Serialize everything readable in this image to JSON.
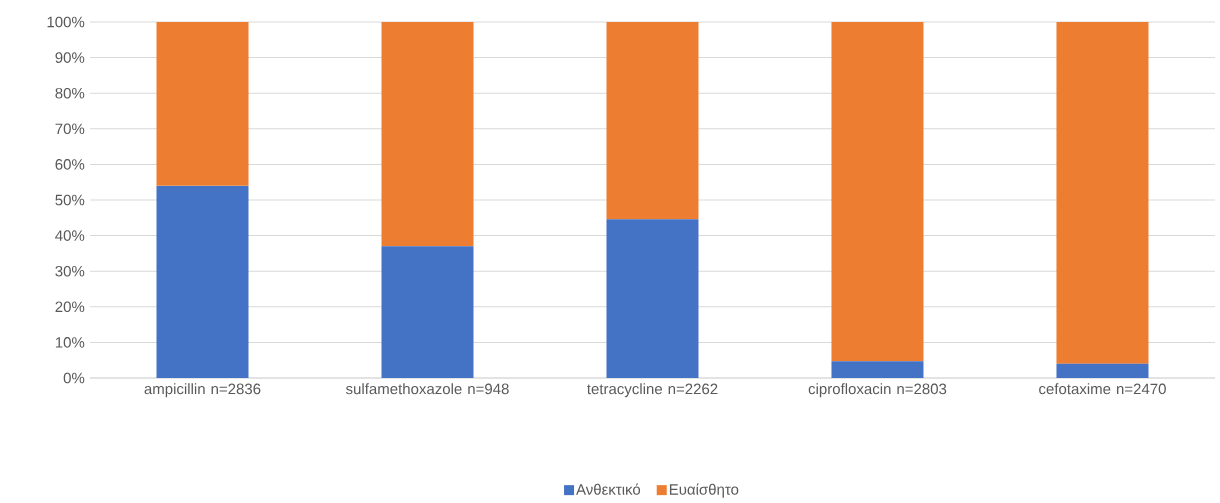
{
  "chart_data": {
    "type": "bar",
    "stacked": true,
    "categories": [
      "ampicillin n=2836",
      "sulfamethoxazole n=948",
      "tetracycline n=2262",
      "ciprofloxacin n=2803",
      "cefotaxime n=2470"
    ],
    "series": [
      {
        "name": "Ανθεκτικό",
        "color": "#4472c4",
        "values": [
          54,
          37,
          44.6,
          4.7,
          4
        ]
      },
      {
        "name": "Ευαίσθητο",
        "color": "#ed7d31",
        "values": [
          46,
          63,
          55.4,
          95.3,
          96
        ]
      }
    ],
    "ylim": [
      0,
      100
    ],
    "yticks": [
      {
        "value": 0,
        "label": "0%"
      },
      {
        "value": 10,
        "label": "10%"
      },
      {
        "value": 20,
        "label": "20%"
      },
      {
        "value": 30,
        "label": "30%"
      },
      {
        "value": 40,
        "label": "40%"
      },
      {
        "value": 50,
        "label": "50%"
      },
      {
        "value": 60,
        "label": "60%"
      },
      {
        "value": 70,
        "label": "70%"
      },
      {
        "value": 80,
        "label": "80%"
      },
      {
        "value": 90,
        "label": "90%"
      },
      {
        "value": 100,
        "label": "100%"
      }
    ],
    "grid": "y",
    "legend": "bottom"
  }
}
